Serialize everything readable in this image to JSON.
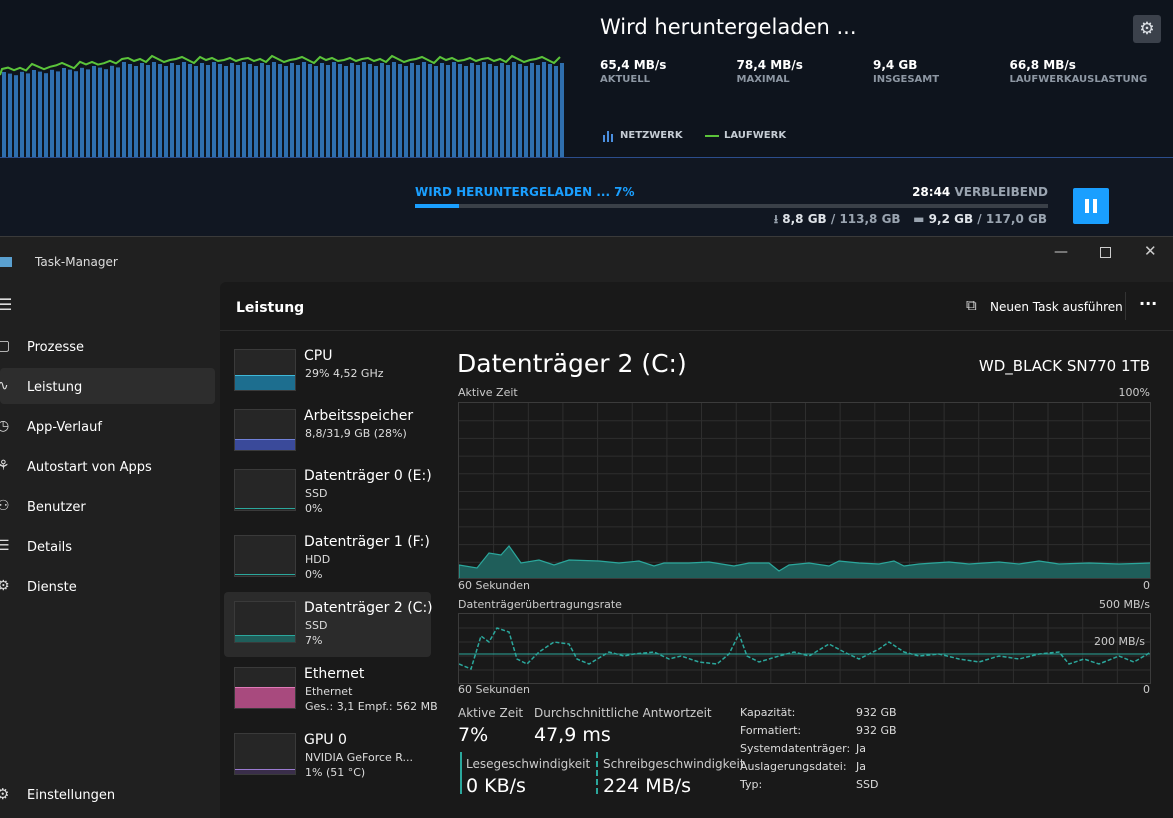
{
  "download": {
    "title": "Wird heruntergeladen ...",
    "stats": [
      {
        "value": "65,4 MB/s",
        "label": "AKTUELL"
      },
      {
        "value": "78,4 MB/s",
        "label": "MAXIMAL"
      },
      {
        "value": "9,4 GB",
        "label": "INSGESAMT"
      },
      {
        "value": "66,8 MB/s",
        "label": "LAUFWERKAUSLASTUNG"
      }
    ],
    "legend": [
      "NETZWERK",
      "LAUFWERK"
    ],
    "progress_label": "WIRD HERUNTERGELADEN ... 7%",
    "progress": 7,
    "remaining_time": "28:44",
    "remaining_label": "VERBLEIBEND",
    "downloaded": "8,8 GB",
    "downloaded_total": "/ 113,8 GB",
    "installed": "9,2 GB",
    "installed_total": "/ 117,0 GB"
  },
  "window": {
    "title": "Task-Manager"
  },
  "nav": {
    "items": [
      "Prozesse",
      "Leistung",
      "App-Verlauf",
      "Autostart von Apps",
      "Benutzer",
      "Details",
      "Dienste"
    ],
    "settings": "Einstellungen"
  },
  "header": {
    "title": "Leistung",
    "new_task": "Neuen Task ausführen"
  },
  "devices": [
    {
      "name": "CPU",
      "lines": [
        "29% 4,52 GHz"
      ]
    },
    {
      "name": "Arbeitsspeicher",
      "lines": [
        "8,8/31,9 GB (28%)"
      ]
    },
    {
      "name": "Datenträger 0 (E:)",
      "lines": [
        "SSD",
        "0%"
      ]
    },
    {
      "name": "Datenträger 1 (F:)",
      "lines": [
        "HDD",
        "0%"
      ]
    },
    {
      "name": "Datenträger 2 (C:)",
      "lines": [
        "SSD",
        "7%"
      ]
    },
    {
      "name": "Ethernet",
      "lines": [
        "Ethernet",
        "Ges.: 3,1 Empf.: 562 MB"
      ]
    },
    {
      "name": "GPU 0",
      "lines": [
        "NVIDIA GeForce R...",
        "1% (51 °C)"
      ]
    }
  ],
  "detail": {
    "title": "Datenträger 2 (C:)",
    "model": "WD_BLACK SN770 1TB",
    "chart1": {
      "label": "Aktive Zeit",
      "max": "100%",
      "time": "60 Sekunden",
      "zero": "0"
    },
    "chart2": {
      "label": "Datenträgerübertragungsrate",
      "max": "500 MB/s",
      "marker": "200 MB/s",
      "time": "60 Sekunden",
      "zero": "0"
    },
    "stats": [
      {
        "label": "Aktive Zeit",
        "value": "7%"
      },
      {
        "label": "Durchschnittliche Antwortzeit",
        "value": "47,9 ms"
      },
      {
        "label": "Lesegeschwindigkeit",
        "value": "0 KB/s"
      },
      {
        "label": "Schreibgeschwindigkeit",
        "value": "224 MB/s"
      }
    ],
    "properties": [
      [
        "Kapazität:",
        "932 GB"
      ],
      [
        "Formatiert:",
        "932 GB"
      ],
      [
        "Systemdatenträger:",
        "Ja"
      ],
      [
        "Auslagerungsdatei:",
        "Ja"
      ],
      [
        "Typ:",
        "SSD"
      ]
    ]
  }
}
